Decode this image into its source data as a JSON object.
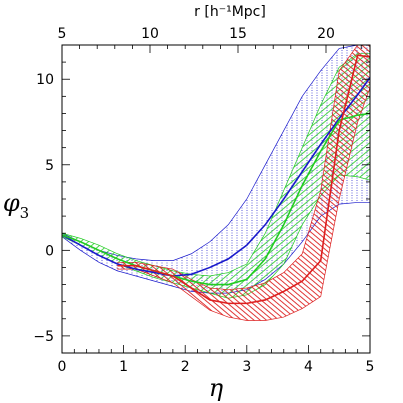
{
  "chart_data": {
    "type": "line",
    "xlabel": "η",
    "ylabel": "φ3",
    "x2label": "r [h⁻¹Mpc]",
    "xlim": [
      0,
      5
    ],
    "ylim": [
      -6,
      12
    ],
    "x2lim": [
      5,
      22.5
    ],
    "xticks": [
      "0",
      "1",
      "2",
      "3",
      "4",
      "5"
    ],
    "yticks": [
      "−5",
      "0",
      "5",
      "10"
    ],
    "x2ticks": [
      "5",
      "10",
      "15",
      "20"
    ],
    "colors": {
      "blue": "#1a1acc",
      "green": "#22cc22",
      "red": "#dd2020",
      "axis": "#000000"
    },
    "series": [
      {
        "color": "blue",
        "x": [
          0,
          0.3,
          0.6,
          0.9,
          1.2,
          1.5,
          1.8,
          2.1,
          2.4,
          2.7,
          3.0,
          3.3,
          3.6,
          3.9,
          4.2,
          4.5,
          4.8,
          5.0
        ],
        "y": [
          0.9,
          0.3,
          -0.3,
          -0.8,
          -1.1,
          -1.3,
          -1.5,
          -1.4,
          -1.0,
          -0.5,
          0.3,
          1.5,
          3.0,
          4.6,
          6.2,
          7.7,
          9.1,
          10.1
        ],
        "band_upper": [
          1.0,
          0.5,
          0.0,
          -0.3,
          -0.5,
          -0.6,
          -0.6,
          -0.2,
          0.5,
          1.5,
          3.0,
          5.0,
          7.0,
          9.0,
          10.5,
          11.8,
          12.0,
          12.0
        ],
        "band_lower": [
          0.8,
          0.0,
          -0.7,
          -1.2,
          -1.5,
          -1.8,
          -2.1,
          -2.4,
          -2.5,
          -2.5,
          -2.3,
          -1.7,
          -0.8,
          0.5,
          2.0,
          2.7,
          2.8,
          2.8
        ]
      },
      {
        "color": "green",
        "x": [
          0,
          0.3,
          0.6,
          0.9,
          1.2,
          1.5,
          1.8,
          2.1,
          2.4,
          2.7,
          3.0,
          3.3,
          3.6,
          3.9,
          4.2,
          4.5,
          4.8,
          5.0
        ],
        "y": [
          0.9,
          0.5,
          0.0,
          -0.5,
          -0.9,
          -1.2,
          -1.5,
          -1.8,
          -2.0,
          -2.0,
          -1.7,
          -0.5,
          1.5,
          3.8,
          5.8,
          7.6,
          7.9,
          8.0
        ],
        "band_upper": [
          1.0,
          0.7,
          0.3,
          -0.2,
          -0.6,
          -0.9,
          -1.2,
          -1.4,
          -1.5,
          -1.3,
          -0.8,
          1.0,
          3.5,
          6.0,
          8.5,
          10.7,
          11.5,
          11.5
        ],
        "band_lower": [
          0.8,
          0.3,
          -0.3,
          -0.8,
          -1.2,
          -1.6,
          -1.9,
          -2.2,
          -2.5,
          -2.8,
          -2.6,
          -2.0,
          -0.8,
          1.5,
          3.2,
          4.4,
          4.3,
          4.1
        ]
      },
      {
        "color": "red",
        "x": [
          0.9,
          1.2,
          1.5,
          1.8,
          2.1,
          2.4,
          2.7,
          3.0,
          3.3,
          3.6,
          3.9,
          4.2,
          4.5,
          4.8,
          5.0
        ],
        "y": [
          -0.9,
          -0.9,
          -1.2,
          -1.5,
          -2.2,
          -2.9,
          -3.1,
          -3.1,
          -2.9,
          -2.4,
          -1.8,
          -0.6,
          7.0,
          11.4,
          11.3
        ],
        "band_upper": [
          -0.7,
          -0.7,
          -0.9,
          -1.1,
          -1.7,
          -2.2,
          -2.3,
          -2.2,
          -1.9,
          -1.3,
          -0.2,
          3.5,
          10.5,
          12.0,
          12.0
        ],
        "band_lower": [
          -1.1,
          -1.1,
          -1.5,
          -1.9,
          -2.7,
          -3.5,
          -3.9,
          -4.1,
          -4.1,
          -3.9,
          -3.4,
          -2.7,
          3.0,
          7.5,
          9.5
        ]
      }
    ]
  }
}
